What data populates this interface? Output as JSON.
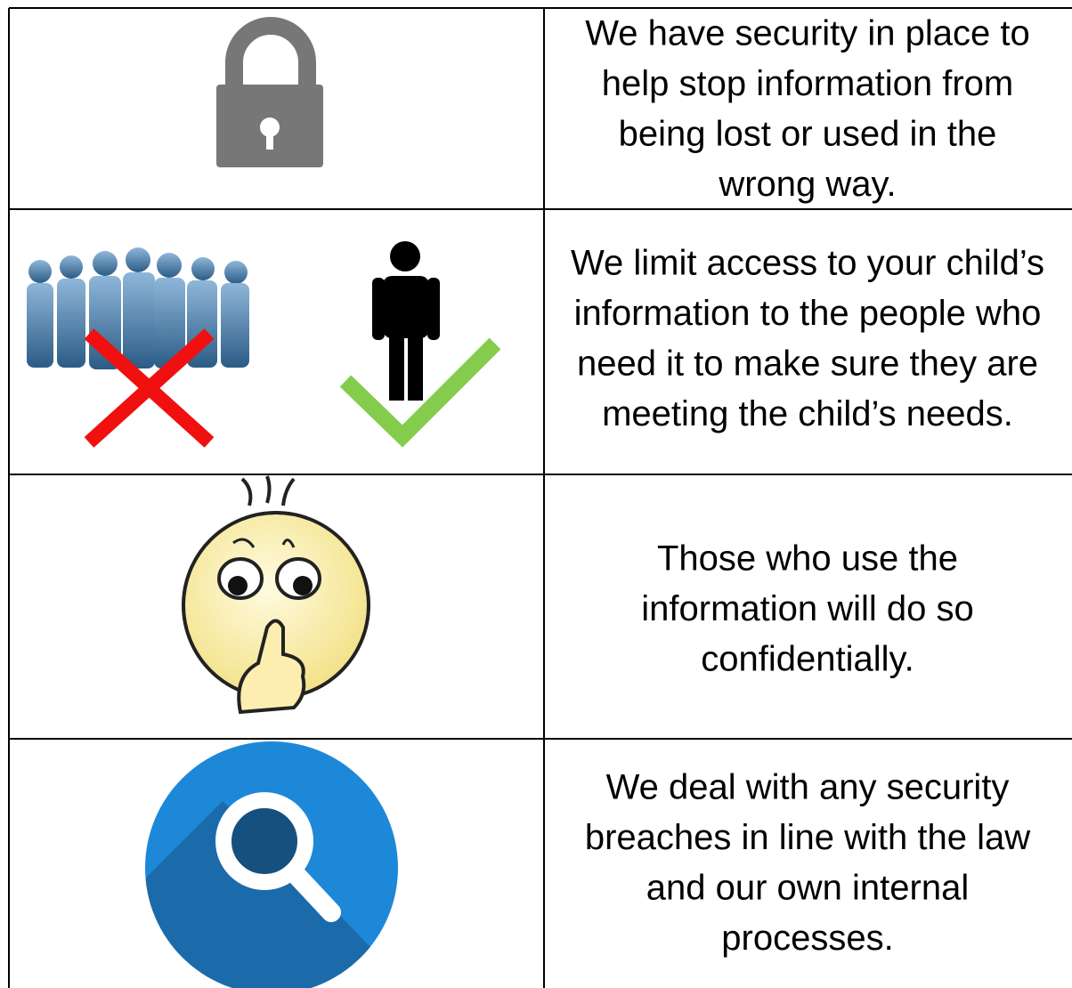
{
  "table": {
    "rows": [
      {
        "lines": [
          "We have security in place to",
          "help stop information from",
          "being lost or used in the",
          "wrong way."
        ]
      },
      {
        "lines": [
          "We limit access to your child’s",
          "information to the people who",
          "need it to make sure they are",
          "meeting the child’s needs."
        ]
      },
      {
        "lines": [
          "Those who use the",
          "information will do so",
          "confidentially."
        ]
      },
      {
        "lines": [
          "We deal with any security",
          "breaches in line with the law",
          "and our own internal",
          "processes."
        ]
      }
    ]
  }
}
